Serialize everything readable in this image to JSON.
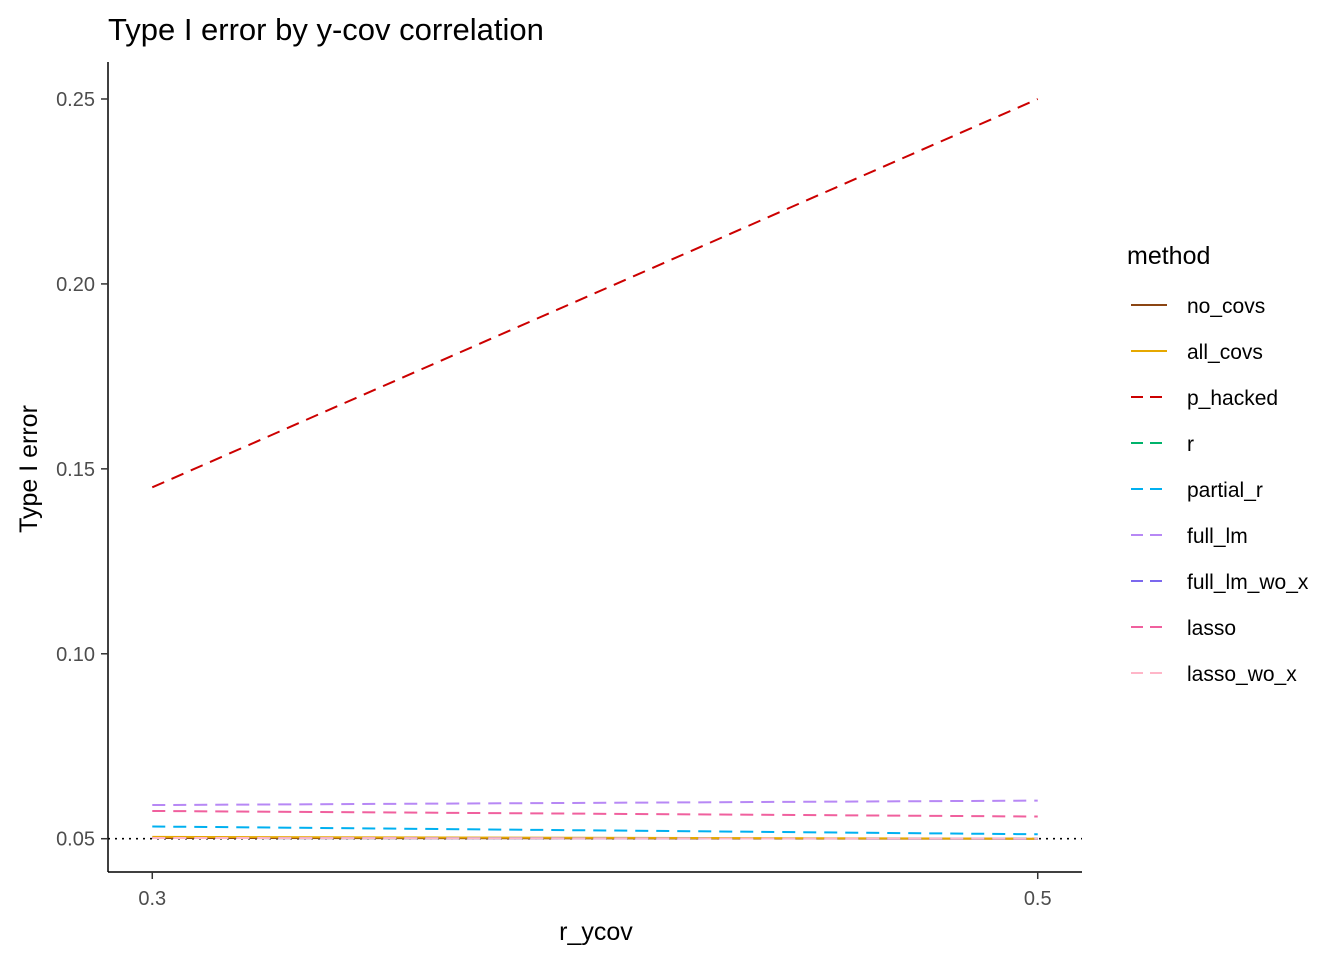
{
  "chart_data": {
    "type": "line",
    "title": "Type I error by y-cov correlation",
    "xlabel": "r_ycov",
    "ylabel": "Type I error",
    "x": [
      0.3,
      0.5
    ],
    "x_ticks": [
      "0.3",
      "0.5"
    ],
    "y_ticks": [
      "0.05",
      "0.10",
      "0.15",
      "0.20",
      "0.25"
    ],
    "xlim": [
      0.29,
      0.51
    ],
    "ylim": [
      0.041,
      0.26
    ],
    "reference_line": {
      "y": 0.05,
      "style": "dotted",
      "color": "#000000"
    },
    "grid": false,
    "legend": {
      "title": "method",
      "position": "right"
    },
    "series": [
      {
        "name": "no_covs",
        "values": [
          0.0502,
          0.05
        ],
        "color": "#8B4513",
        "dash": "solid"
      },
      {
        "name": "all_covs",
        "values": [
          0.0505,
          0.05
        ],
        "color": "#E6A800",
        "dash": "solid"
      },
      {
        "name": "p_hacked",
        "values": [
          0.145,
          0.25
        ],
        "color": "#CC0000",
        "dash": "dashed"
      },
      {
        "name": "r",
        "values": [
          0.0502,
          0.05
        ],
        "color": "#00B36B",
        "dash": "dashed"
      },
      {
        "name": "partial_r",
        "values": [
          0.0533,
          0.0512
        ],
        "color": "#00B0F0",
        "dash": "dashed"
      },
      {
        "name": "full_lm",
        "values": [
          0.0591,
          0.0603
        ],
        "color": "#B788F5",
        "dash": "dashed"
      },
      {
        "name": "full_lm_wo_x",
        "values": [
          0.0502,
          0.05
        ],
        "color": "#7B68EE",
        "dash": "dashed"
      },
      {
        "name": "lasso",
        "values": [
          0.0575,
          0.056
        ],
        "color": "#F0609E",
        "dash": "dashed"
      },
      {
        "name": "lasso_wo_x",
        "values": [
          0.0502,
          0.05
        ],
        "color": "#FFB6C8",
        "dash": "dashed"
      }
    ]
  }
}
